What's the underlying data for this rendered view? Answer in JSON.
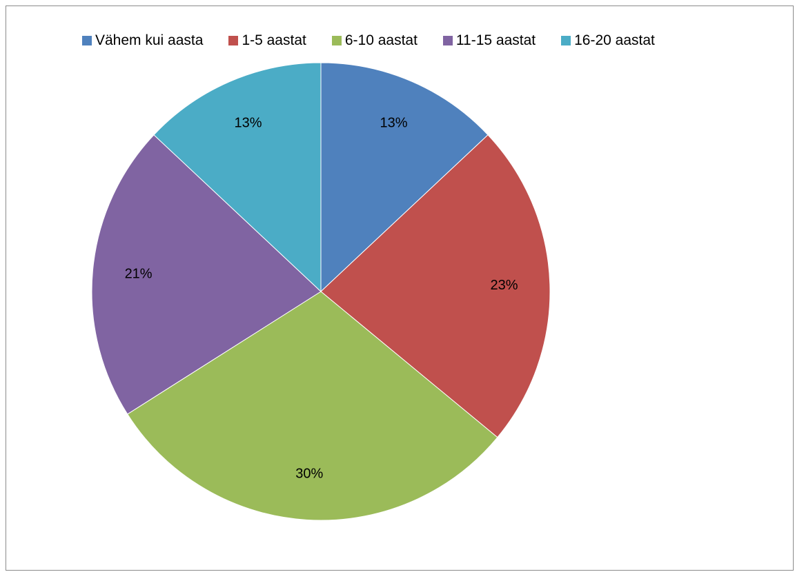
{
  "chart_data": {
    "type": "pie",
    "title": "",
    "legend_position": "top",
    "start_angle_deg": 0,
    "direction": "clockwise",
    "categories": [
      "Vähem kui aasta",
      "1-5 aastat",
      "6-10 aastat",
      "11-15 aastat",
      "16-20 aastat"
    ],
    "values": [
      13,
      23,
      30,
      21,
      13
    ],
    "labels": [
      "13%",
      "23%",
      "30%",
      "21%",
      "13%"
    ],
    "colors": [
      "#4f81bd",
      "#c0504d",
      "#9bbb59",
      "#8064a2",
      "#4bacc6"
    ]
  }
}
